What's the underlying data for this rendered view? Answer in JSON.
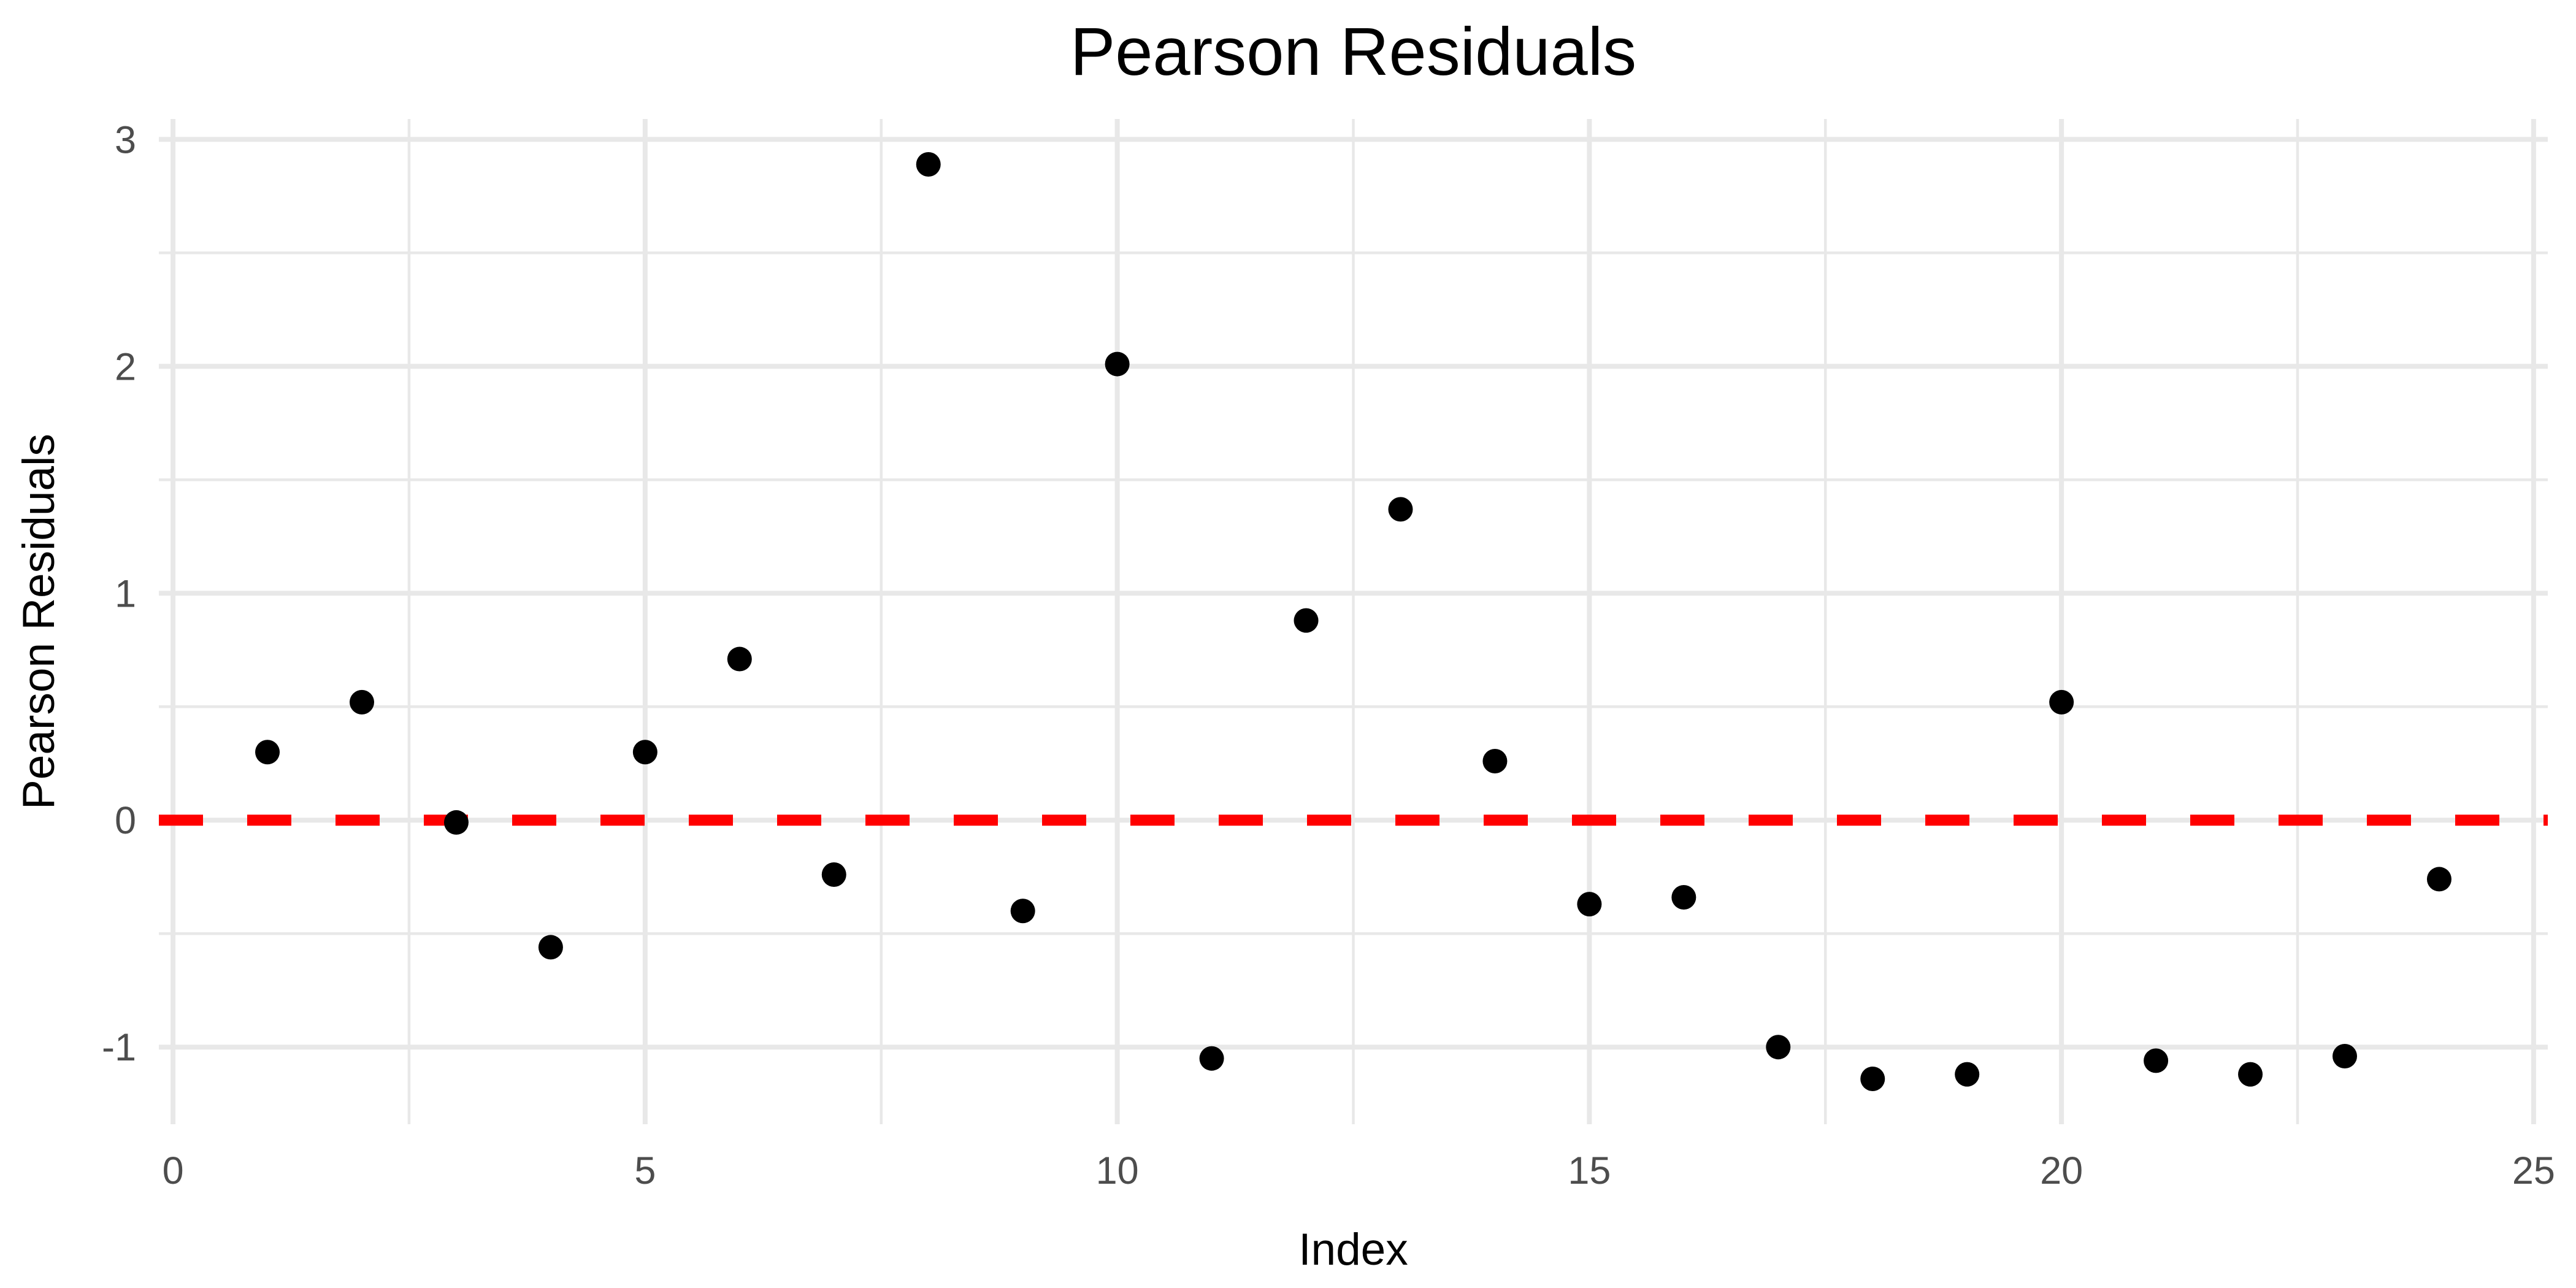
{
  "chart_data": {
    "type": "scatter",
    "title": "Pearson Residuals",
    "xlabel": "Index",
    "ylabel": "Pearson Residuals",
    "x": [
      1,
      2,
      3,
      4,
      5,
      6,
      7,
      8,
      9,
      10,
      11,
      12,
      13,
      14,
      15,
      16,
      17,
      18,
      19,
      20,
      21,
      22,
      23,
      24
    ],
    "y": [
      0.3,
      0.52,
      -0.01,
      -0.56,
      0.3,
      0.71,
      -0.24,
      2.89,
      -0.4,
      2.01,
      -1.05,
      0.88,
      1.37,
      0.26,
      -0.37,
      -0.34,
      -1.0,
      -1.14,
      -1.12,
      0.52,
      -1.06,
      -1.12,
      -1.04,
      -0.26
    ],
    "xlim": [
      -0.15,
      25.15
    ],
    "ylim": [
      -1.34,
      3.09
    ],
    "xticks": {
      "values": [
        0,
        5,
        10,
        15,
        20,
        25
      ],
      "labels": [
        "0",
        "5",
        "10",
        "15",
        "20",
        "25"
      ]
    },
    "yticks": {
      "values": [
        -1,
        0,
        1,
        2,
        3
      ],
      "labels": [
        "-1",
        "0",
        "1",
        "2",
        "3"
      ]
    },
    "minor_xticks": [
      2.5,
      7.5,
      12.5,
      17.5,
      22.5
    ],
    "minor_yticks": [
      -0.5,
      0.5,
      1.5,
      2.5
    ],
    "grid": "major-and-minor",
    "legend": false,
    "reference_line": {
      "y": 0,
      "style": "dashed",
      "color": "#FF0000"
    },
    "colors": {
      "point": "#000000",
      "grid": "#E8E8E8",
      "tick_label": "#4D4D4D",
      "axis_title": "#000000",
      "title": "#000000",
      "background": "#FFFFFF"
    }
  }
}
